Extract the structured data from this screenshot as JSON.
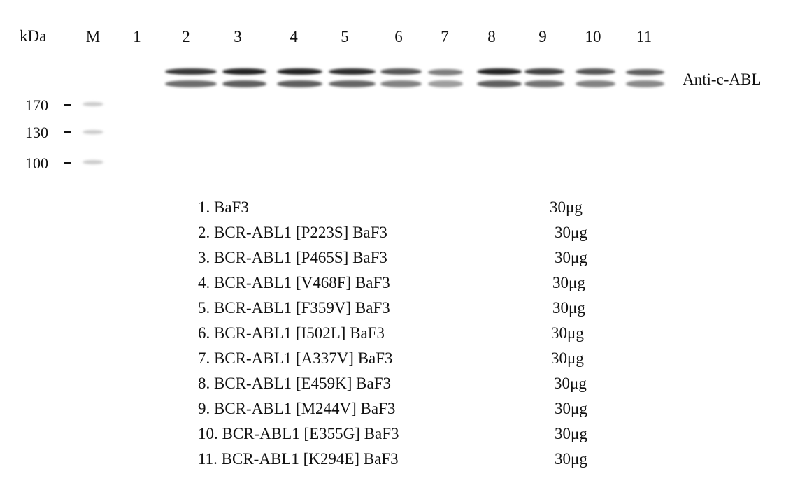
{
  "header": {
    "unit_label": "kDa",
    "marker_label": "M"
  },
  "lanes": [
    "1",
    "2",
    "3",
    "4",
    "5",
    "6",
    "7",
    "8",
    "9",
    "10",
    "11"
  ],
  "antibody_label": "Anti-c-ABL",
  "markers": [
    "170",
    "130",
    "100"
  ],
  "band_intensity_relative": [
    0,
    0.9,
    1.0,
    1.0,
    0.95,
    0.75,
    0.55,
    1.0,
    0.85,
    0.75,
    0.7
  ],
  "samples": [
    {
      "label": "1. BaF3",
      "amount": "30μg"
    },
    {
      "label": "2. BCR-ABL1 [P223S] BaF3",
      "amount": "30μg"
    },
    {
      "label": "3. BCR-ABL1 [P465S] BaF3",
      "amount": "30μg"
    },
    {
      "label": "4. BCR-ABL1 [V468F] BaF3",
      "amount": "30μg"
    },
    {
      "label": "5. BCR-ABL1 [F359V] BaF3",
      "amount": "30μg"
    },
    {
      "label": "6. BCR-ABL1 [I502L] BaF3",
      "amount": "30μg"
    },
    {
      "label": "7. BCR-ABL1 [A337V] BaF3",
      "amount": "30μg"
    },
    {
      "label": "8. BCR-ABL1 [E459K] BaF3",
      "amount": "30μg"
    },
    {
      "label": "9. BCR-ABL1 [M244V] BaF3",
      "amount": "30μg"
    },
    {
      "label": "10. BCR-ABL1 [E355G] BaF3",
      "amount": "30μg"
    },
    {
      "label": "11. BCR-ABL1 [K294E] BaF3",
      "amount": "30μg"
    }
  ]
}
